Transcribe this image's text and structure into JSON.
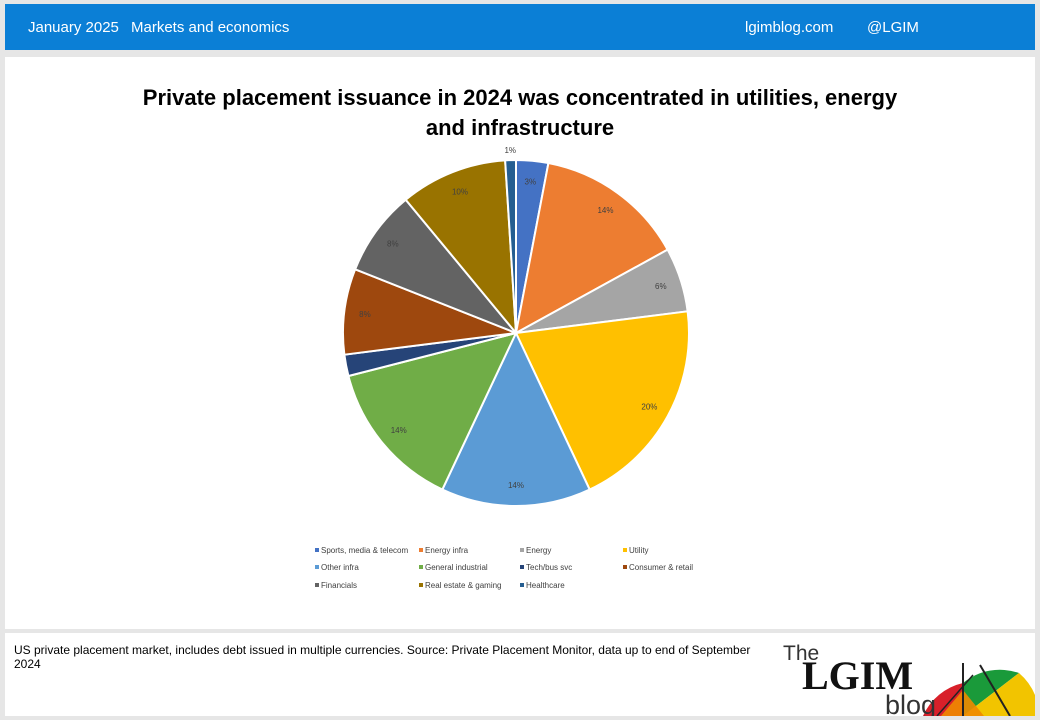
{
  "header": {
    "date": "January 2025",
    "category": "Markets and economics",
    "site": "lgimblog.com",
    "handle": "@LGIM"
  },
  "chart": {
    "title_line1": "Private placement issuance in 2024 was concentrated in utilities, energy",
    "title_line2": "and infrastructure"
  },
  "chart_data": {
    "type": "pie",
    "title": "Private placement issuance in 2024 was concentrated in utilities, energy and infrastructure",
    "slices": [
      {
        "name": "Sports, media & telecom",
        "value": 3,
        "label": "3%",
        "color": "#4472c4"
      },
      {
        "name": "Energy infra",
        "value": 14,
        "label": "14%",
        "color": "#ed7d31"
      },
      {
        "name": "Energy",
        "value": 6,
        "label": "6%",
        "color": "#a5a5a5"
      },
      {
        "name": "Utility",
        "value": 20,
        "label": "20%",
        "color": "#ffc000"
      },
      {
        "name": "Other infra",
        "value": 14,
        "label": "14%",
        "color": "#5b9bd5"
      },
      {
        "name": "General industrial",
        "value": 14,
        "label": "14%",
        "color": "#70ad47"
      },
      {
        "name": "Tech/bus svc",
        "value": 2,
        "label": "",
        "color": "#264478"
      },
      {
        "name": "Consumer & retail",
        "value": 8,
        "label": "8%",
        "color": "#9e480e"
      },
      {
        "name": "Financials",
        "value": 8,
        "label": "8%",
        "color": "#636363"
      },
      {
        "name": "Real estate & gaming",
        "value": 10,
        "label": "10%",
        "color": "#997300"
      },
      {
        "name": "Healthcare",
        "value": 1,
        "label": "1%",
        "color": "#255e91"
      }
    ],
    "legend_position": "bottom"
  },
  "footer": {
    "note": "US private placement market, includes debt issued in multiple currencies. Source: Private Placement Monitor, data up to end of September 2024",
    "logo_the": "The",
    "logo_main": "LGIM",
    "logo_blog": "blog"
  }
}
